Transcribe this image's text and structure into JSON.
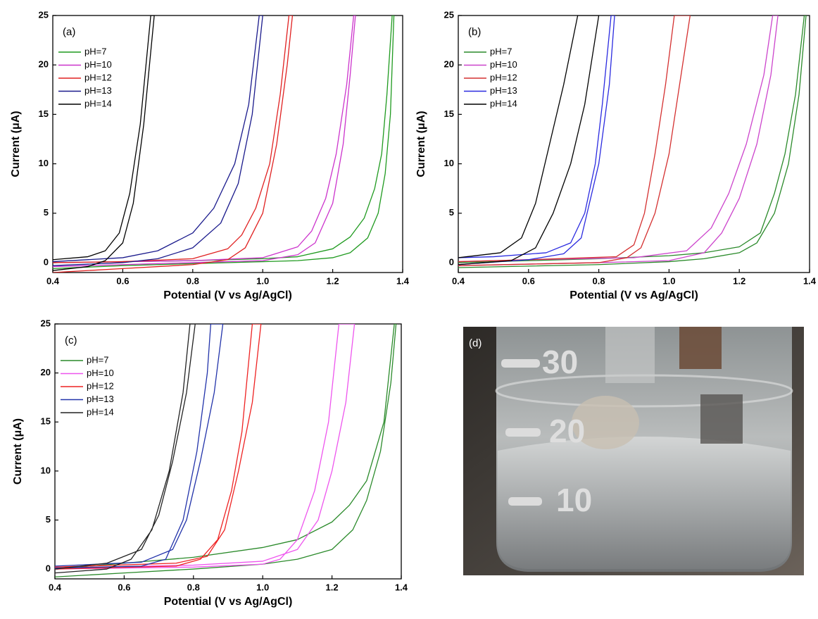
{
  "chart_data": [
    {
      "type": "line",
      "title": "(a)",
      "xlabel": "Potential (V vs Ag/AgCl)",
      "ylabel": "Current (μA)",
      "xlim": [
        0.4,
        1.4
      ],
      "xticks": [
        0.4,
        0.6,
        0.8,
        {
          "value": 1,
          "label": "1.0"
        },
        1.2,
        1.4
      ],
      "ylim": [
        -1,
        25
      ],
      "yticks": [
        0,
        5,
        10,
        15,
        20,
        25
      ],
      "series": [
        {
          "name": "pH=7",
          "color": "#1f9a1f",
          "x": [
            0.4,
            0.6,
            0.8,
            1.0,
            1.1,
            1.2,
            1.25,
            1.3,
            1.33,
            1.35,
            1.365,
            1.375,
            1.37,
            1.355,
            1.34,
            1.32,
            1.29,
            1.25,
            1.2,
            1.1,
            1.0,
            0.8,
            0.6,
            0.4
          ],
          "values": [
            -0.6,
            -0.3,
            -0.1,
            0.1,
            0.2,
            0.5,
            1.0,
            2.5,
            5,
            9,
            15,
            25,
            25,
            17,
            11,
            7.5,
            4.5,
            2.6,
            1.4,
            0.6,
            0.4,
            0.2,
            0.1,
            0
          ]
        },
        {
          "name": "pH=10",
          "color": "#cc33cc",
          "x": [
            0.4,
            0.6,
            0.8,
            1.0,
            1.1,
            1.15,
            1.2,
            1.23,
            1.25,
            1.265,
            1.26,
            1.24,
            1.21,
            1.18,
            1.14,
            1.1,
            1.0,
            0.8,
            0.6,
            0.4
          ],
          "values": [
            -0.4,
            -0.2,
            0,
            0.2,
            0.8,
            2,
            6,
            12,
            19,
            25,
            25,
            18,
            11,
            6.5,
            3.2,
            1.6,
            0.5,
            0.2,
            0.1,
            0
          ]
        },
        {
          "name": "pH=12",
          "color": "#e02020",
          "x": [
            0.4,
            0.6,
            0.8,
            0.9,
            0.95,
            1.0,
            1.04,
            1.07,
            1.085,
            1.075,
            1.05,
            1.02,
            0.98,
            0.94,
            0.9,
            0.8,
            0.6,
            0.4
          ],
          "values": [
            -1.0,
            -0.6,
            -0.2,
            0.3,
            1.5,
            5,
            12,
            20,
            25,
            25,
            17,
            10,
            5.5,
            2.8,
            1.4,
            0.4,
            0.1,
            0
          ]
        },
        {
          "name": "pH=13",
          "color": "#1a1a8c",
          "x": [
            0.4,
            0.6,
            0.7,
            0.8,
            0.88,
            0.93,
            0.97,
            1.0,
            0.99,
            0.96,
            0.92,
            0.86,
            0.8,
            0.7,
            0.6,
            0.4
          ],
          "values": [
            -0.3,
            0,
            0.4,
            1.5,
            4,
            8,
            15,
            25,
            25,
            16,
            10,
            5.5,
            3,
            1.2,
            0.5,
            0.1
          ]
        },
        {
          "name": "pH=14",
          "color": "#000000",
          "x": [
            0.4,
            0.5,
            0.55,
            0.6,
            0.63,
            0.66,
            0.69,
            0.68,
            0.65,
            0.62,
            0.59,
            0.55,
            0.5,
            0.4
          ],
          "values": [
            -0.8,
            -0.4,
            0.2,
            2,
            6,
            14,
            25,
            25,
            14,
            7,
            3,
            1.2,
            0.6,
            0.3
          ]
        }
      ]
    },
    {
      "type": "line",
      "title": "(b)",
      "xlabel": "Potential (V vs Ag/AgCl)",
      "ylabel": "Current (μA)",
      "xlim": [
        0.4,
        1.4
      ],
      "xticks": [
        0.4,
        0.6,
        0.8,
        {
          "value": 1,
          "label": "1.0"
        },
        1.2,
        1.4
      ],
      "ylim": [
        -1,
        25
      ],
      "yticks": [
        0,
        5,
        10,
        15,
        20,
        25
      ],
      "series": [
        {
          "name": "pH=7",
          "color": "#2a8a2a",
          "x": [
            0.4,
            0.8,
            1.0,
            1.1,
            1.2,
            1.25,
            1.3,
            1.34,
            1.37,
            1.39,
            1.385,
            1.36,
            1.33,
            1.3,
            1.26,
            1.2,
            1.1,
            1.0,
            0.8,
            0.6,
            0.4
          ],
          "values": [
            -0.5,
            -0.2,
            0.1,
            0.4,
            1,
            2,
            5,
            10,
            17,
            25,
            25,
            17,
            11,
            7,
            3,
            1.6,
            1,
            0.7,
            0.4,
            0.2,
            0
          ]
        },
        {
          "name": "pH=10",
          "color": "#cc44cc",
          "x": [
            0.4,
            0.8,
            1.0,
            1.1,
            1.15,
            1.2,
            1.25,
            1.29,
            1.31,
            1.295,
            1.27,
            1.22,
            1.17,
            1.12,
            1.05,
            0.9,
            0.6,
            0.4
          ],
          "values": [
            -0.3,
            0,
            0.2,
            1,
            3,
            6.5,
            12,
            19,
            25,
            25,
            19,
            12,
            7,
            3.5,
            1.2,
            0.5,
            0.3,
            0.1
          ]
        },
        {
          "name": "pH=12",
          "color": "#d43030",
          "x": [
            0.4,
            0.8,
            0.88,
            0.92,
            0.96,
            1.0,
            1.03,
            1.06,
            1.015,
            0.99,
            0.96,
            0.93,
            0.9,
            0.85,
            0.6,
            0.4
          ],
          "values": [
            -0.3,
            0,
            0.5,
            1.5,
            5,
            11,
            18,
            25,
            25,
            18,
            11,
            5,
            1.8,
            0.6,
            0.3,
            0.1
          ]
        },
        {
          "name": "pH=13",
          "color": "#2a2ae0",
          "x": [
            0.4,
            0.6,
            0.7,
            0.75,
            0.8,
            0.83,
            0.845,
            0.835,
            0.81,
            0.79,
            0.76,
            0.72,
            0.65,
            0.5,
            0.4
          ],
          "values": [
            -0.2,
            0.3,
            0.9,
            2.5,
            10,
            18,
            25,
            25,
            16,
            10,
            5,
            2,
            1,
            0.6,
            0.5
          ]
        },
        {
          "name": "pH=14",
          "color": "#000000",
          "x": [
            0.4,
            0.55,
            0.62,
            0.67,
            0.72,
            0.76,
            0.8,
            0.74,
            0.7,
            0.66,
            0.62,
            0.58,
            0.52,
            0.4
          ],
          "values": [
            -0.2,
            0.2,
            1.5,
            5,
            10,
            16,
            25,
            25,
            18,
            12,
            6,
            2.5,
            1,
            0.5
          ]
        }
      ]
    },
    {
      "type": "line",
      "title": "(c)",
      "xlabel": "Potential (V vs Ag/AgCl)",
      "ylabel": "Current (μA)",
      "xlim": [
        0.4,
        1.4
      ],
      "xticks": [
        0.4,
        0.6,
        0.8,
        {
          "value": 1,
          "label": "1.0"
        },
        1.2,
        1.4
      ],
      "ylim": [
        -1,
        25
      ],
      "yticks": [
        0,
        5,
        10,
        15,
        20,
        25
      ],
      "series": [
        {
          "name": "pH=7",
          "color": "#2a8a2a",
          "x": [
            0.4,
            0.6,
            0.8,
            1.0,
            1.1,
            1.2,
            1.26,
            1.3,
            1.34,
            1.37,
            1.385,
            1.38,
            1.35,
            1.3,
            1.25,
            1.2,
            1.1,
            1.0,
            0.8,
            0.6,
            0.4
          ],
          "values": [
            -0.8,
            -0.4,
            0,
            0.5,
            1,
            2,
            4,
            7,
            12,
            19,
            25,
            25,
            15,
            9,
            6.5,
            4.8,
            3,
            2.2,
            1.2,
            0.6,
            0
          ]
        },
        {
          "name": "pH=10",
          "color": "#ee55ee",
          "x": [
            0.4,
            0.8,
            1.0,
            1.05,
            1.1,
            1.15,
            1.19,
            1.22,
            1.265,
            1.24,
            1.2,
            1.16,
            1.1,
            1.0,
            0.8,
            0.4
          ],
          "values": [
            0,
            0.2,
            0.5,
            1,
            3,
            8,
            15,
            25,
            25,
            17,
            10,
            5,
            2,
            0.8,
            0.4,
            0.1
          ]
        },
        {
          "name": "pH=12",
          "color": "#ee2222",
          "x": [
            0.4,
            0.75,
            0.82,
            0.87,
            0.91,
            0.94,
            0.97,
            0.995,
            0.97,
            0.93,
            0.89,
            0.84,
            0.75,
            0.4
          ],
          "values": [
            0,
            0.3,
            1,
            3,
            8,
            14,
            25,
            25,
            17,
            10,
            4,
            1.3,
            0.6,
            0.2
          ]
        },
        {
          "name": "pH=13",
          "color": "#2233aa",
          "x": [
            0.4,
            0.65,
            0.72,
            0.77,
            0.81,
            0.84,
            0.85,
            0.885,
            0.86,
            0.82,
            0.78,
            0.74,
            0.65,
            0.4
          ],
          "values": [
            0.1,
            0.3,
            1,
            5,
            12,
            20,
            25,
            25,
            18,
            11,
            5,
            2,
            0.7,
            0.3
          ]
        },
        {
          "name": "pH=14",
          "color": "#222222",
          "x": [
            0.4,
            0.55,
            0.62,
            0.68,
            0.73,
            0.77,
            0.79,
            0.805,
            0.78,
            0.74,
            0.7,
            0.65,
            0.55,
            0.4
          ],
          "values": [
            -0.4,
            0,
            1,
            4,
            10,
            18,
            25,
            25,
            18,
            11,
            5.5,
            2,
            0.6,
            0
          ]
        }
      ]
    }
  ],
  "photo": {
    "label": "(d)",
    "scale_marks": [
      "30",
      "20",
      "10"
    ]
  }
}
